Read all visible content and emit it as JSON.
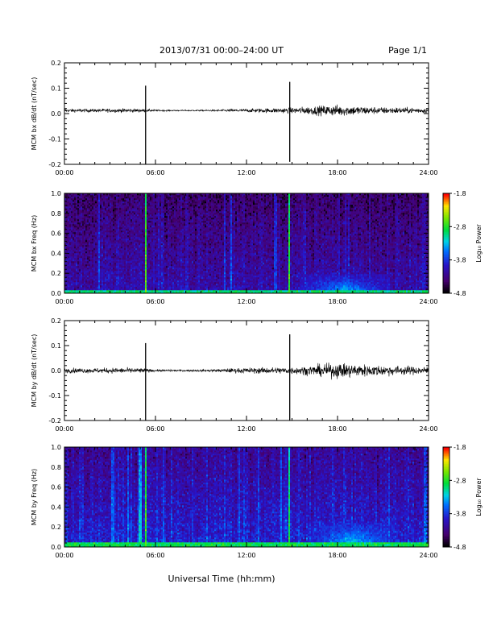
{
  "header": {
    "title": "2013/07/31  00:00–24:00 UT",
    "page": "Page 1/1"
  },
  "xlabel": "Universal Time (hh:mm)",
  "chart_data": [
    {
      "type": "line",
      "ylabel": "MCM bx dB/dt (nT/sec)",
      "xlim": [
        0,
        24
      ],
      "ylim": [
        -0.2,
        0.2
      ],
      "x_ticks": [
        "00:00",
        "06:00",
        "12:00",
        "18:00",
        "24:00"
      ],
      "y_ticks": [
        "-0.2",
        "-0.1",
        "0.0",
        "0.1",
        "0.2"
      ],
      "line_color": "#000000",
      "envelope": [
        {
          "x": 0,
          "y": 0.012
        },
        {
          "x": 2,
          "y": 0.012
        },
        {
          "x": 3.5,
          "y": 0.014
        },
        {
          "x": 5,
          "y": 0.013
        },
        {
          "x": 6,
          "y": 0.006
        },
        {
          "x": 8,
          "y": 0.004
        },
        {
          "x": 10,
          "y": 0.006
        },
        {
          "x": 11,
          "y": 0.01
        },
        {
          "x": 12,
          "y": 0.012
        },
        {
          "x": 13,
          "y": 0.015
        },
        {
          "x": 14,
          "y": 0.018
        },
        {
          "x": 15,
          "y": 0.02
        },
        {
          "x": 16,
          "y": 0.028
        },
        {
          "x": 17,
          "y": 0.035
        },
        {
          "x": 18,
          "y": 0.04
        },
        {
          "x": 19,
          "y": 0.035
        },
        {
          "x": 20,
          "y": 0.028
        },
        {
          "x": 21,
          "y": 0.024
        },
        {
          "x": 22,
          "y": 0.022
        },
        {
          "x": 23,
          "y": 0.02
        },
        {
          "x": 24,
          "y": 0.018
        }
      ],
      "baseline": 0.012,
      "spikes": [
        {
          "x": 5.35,
          "ymin": -0.2,
          "ymax": 0.11
        },
        {
          "x": 14.85,
          "ymin": -0.19,
          "ymax": 0.125
        }
      ]
    },
    {
      "type": "heatmap",
      "ylabel": "MCM bx Freq (Hz)",
      "xlim": [
        0,
        24
      ],
      "ylim": [
        0,
        1
      ],
      "x_ticks": [
        "00:00",
        "06:00",
        "12:00",
        "18:00",
        "24:00"
      ],
      "y_ticks": [
        "0.0",
        "0.2",
        "0.4",
        "0.6",
        "0.8",
        "1.0"
      ],
      "colorbar": {
        "label": "Log₁₀ Power",
        "ticks": [
          "-1.8",
          "-2.8",
          "-3.8",
          "-4.8"
        ],
        "range": [
          -4.8,
          -1.8
        ]
      },
      "background_level": -4.1,
      "low_freq_band": {
        "fmax": 0.04,
        "level": -3.0
      },
      "broadband_lines": [
        {
          "x": 5.35,
          "level": -2.6
        },
        {
          "x": 14.85,
          "level": -2.7
        },
        {
          "x": 2.3,
          "level": -3.7
        },
        {
          "x": 10.6,
          "level": -3.7
        },
        {
          "x": 11.0,
          "level": -3.6
        },
        {
          "x": 13.9,
          "level": -3.7
        },
        {
          "x": 18.5,
          "level": -3.9
        }
      ],
      "enhanced_region": {
        "x_start": 15.5,
        "x_end": 21.5,
        "fmax": 0.2,
        "peak_level": -3.2
      }
    },
    {
      "type": "line",
      "ylabel": "MCM by dB/dt (nT/sec)",
      "xlim": [
        0,
        24
      ],
      "ylim": [
        -0.2,
        0.2
      ],
      "x_ticks": [
        "00:00",
        "06:00",
        "12:00",
        "18:00",
        "24:00"
      ],
      "y_ticks": [
        "-0.2",
        "-0.1",
        "0.0",
        "0.1",
        "0.2"
      ],
      "line_color": "#000000",
      "envelope": [
        {
          "x": 0,
          "y": 0.018
        },
        {
          "x": 2,
          "y": 0.018
        },
        {
          "x": 3.5,
          "y": 0.02
        },
        {
          "x": 5,
          "y": 0.018
        },
        {
          "x": 6,
          "y": 0.008
        },
        {
          "x": 8,
          "y": 0.006
        },
        {
          "x": 10,
          "y": 0.01
        },
        {
          "x": 11,
          "y": 0.016
        },
        {
          "x": 12,
          "y": 0.02
        },
        {
          "x": 13,
          "y": 0.022
        },
        {
          "x": 14,
          "y": 0.024
        },
        {
          "x": 15,
          "y": 0.025
        },
        {
          "x": 16,
          "y": 0.032
        },
        {
          "x": 17,
          "y": 0.045
        },
        {
          "x": 18,
          "y": 0.055
        },
        {
          "x": 19,
          "y": 0.05
        },
        {
          "x": 20,
          "y": 0.042
        },
        {
          "x": 21,
          "y": 0.038
        },
        {
          "x": 22,
          "y": 0.034
        },
        {
          "x": 23,
          "y": 0.03
        },
        {
          "x": 24,
          "y": 0.028
        }
      ],
      "baseline": 0.0,
      "spikes": [
        {
          "x": 5.35,
          "ymin": -0.2,
          "ymax": 0.11
        },
        {
          "x": 14.85,
          "ymin": -0.2,
          "ymax": 0.145
        }
      ]
    },
    {
      "type": "heatmap",
      "ylabel": "MCM by Freq (Hz)",
      "xlim": [
        0,
        24
      ],
      "ylim": [
        0,
        1
      ],
      "x_ticks": [
        "00:00",
        "06:00",
        "12:00",
        "18:00",
        "24:00"
      ],
      "y_ticks": [
        "0.0",
        "0.2",
        "0.4",
        "0.6",
        "0.8",
        "1.0"
      ],
      "colorbar": {
        "label": "Log₁₀ Power",
        "ticks": [
          "-1.8",
          "-2.8",
          "-3.8",
          "-4.8"
        ],
        "range": [
          -4.8,
          -1.8
        ]
      },
      "background_level": -3.9,
      "low_freq_band": {
        "fmax": 0.05,
        "level": -2.9
      },
      "broadband_lines": [
        {
          "x": 5.0,
          "level": -3.2
        },
        {
          "x": 5.35,
          "level": -2.6
        },
        {
          "x": 14.85,
          "level": -2.8
        },
        {
          "x": 3.2,
          "level": -3.5
        },
        {
          "x": 4.2,
          "level": -3.5
        },
        {
          "x": 6.5,
          "level": -3.6
        },
        {
          "x": 11.5,
          "level": -3.6
        },
        {
          "x": 12.8,
          "level": -3.6
        },
        {
          "x": 14.3,
          "level": -3.5
        },
        {
          "x": 23.8,
          "level": -3.5
        }
      ],
      "enhanced_region": {
        "x_start": 16,
        "x_end": 22,
        "fmax": 0.25,
        "peak_level": -3.1
      }
    }
  ]
}
